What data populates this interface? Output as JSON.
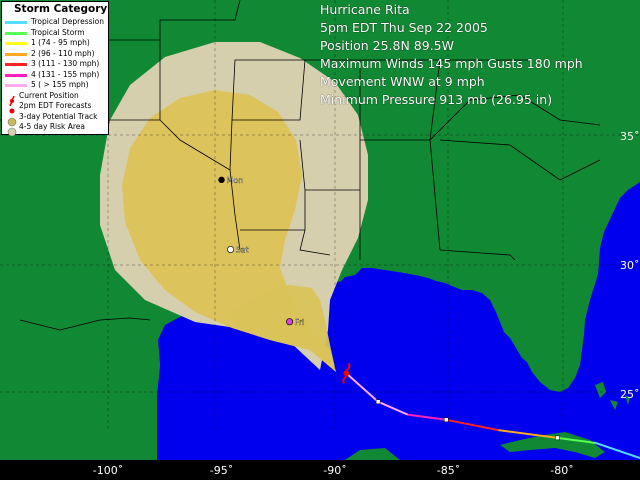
{
  "info": {
    "title": "Hurricane Rita",
    "time": "5pm EDT Thu Sep 22 2005",
    "position": "Position 25.8N 89.5W",
    "winds": "Maximum Winds 145 mph Gusts 180 mph",
    "movement": "Movement WNW at 9 mph",
    "pressure": "Minimum Pressure 913 mb (26.95 in)"
  },
  "legend": {
    "title": "Storm Category",
    "items": [
      {
        "label": "Tropical Depression",
        "color": "#55ddff",
        "kind": "line"
      },
      {
        "label": "Tropical Storm",
        "color": "#55ff55",
        "kind": "line"
      },
      {
        "label": "1 (74 - 95 mph)",
        "color": "#ffff22",
        "kind": "line"
      },
      {
        "label": "2 (96 - 110 mph)",
        "color": "#ffaa22",
        "kind": "line"
      },
      {
        "label": "3 (111 - 130 mph)",
        "color": "#ff2222",
        "kind": "line"
      },
      {
        "label": "4 (131 - 155 mph)",
        "color": "#ff22bb",
        "kind": "line"
      },
      {
        "label": "5 ( > 155 mph)",
        "color": "#ffaaee",
        "kind": "line"
      },
      {
        "label": "Current Position",
        "color": "#ee0000",
        "kind": "hurricane-icon"
      },
      {
        "label": "2pm EDT Forecasts",
        "color": "#ee0000",
        "kind": "dot"
      },
      {
        "label": "3-day Potential Track",
        "color": "#c8b858",
        "kind": "cone"
      },
      {
        "label": "4-5 day Risk Area",
        "color": "#d8d0b0",
        "kind": "risk"
      }
    ]
  },
  "forecast_points": [
    {
      "label": "Fri",
      "lon": -92.0,
      "lat": 27.8,
      "color": "#dd44dd"
    },
    {
      "label": "Sat",
      "lon": -94.6,
      "lat": 30.6,
      "color": "#ffffff"
    },
    {
      "label": "Mon",
      "lon": -95.0,
      "lat": 33.3,
      "color": "#000000"
    }
  ],
  "current_position": {
    "lon": -89.5,
    "lat": 25.8
  },
  "past_track": [
    {
      "lon": -78.5,
      "lat": 23.1
    },
    {
      "lon": -80.2,
      "lat": 23.3
    },
    {
      "lon": -82.8,
      "lat": 23.6
    },
    {
      "lon": -85.1,
      "lat": 24.0
    },
    {
      "lon": -86.8,
      "lat": 24.2
    },
    {
      "lon": -88.1,
      "lat": 24.7
    },
    {
      "lon": -89.5,
      "lat": 25.8
    }
  ],
  "axes": {
    "lon_labels": [
      "-100˚",
      "-95˚",
      "-90˚",
      "-85˚",
      "-80˚"
    ],
    "lat_labels": [
      "35˚",
      "30˚",
      "25˚"
    ],
    "lon_values": [
      -100,
      -95,
      -90,
      -85,
      -80
    ],
    "lat_values": [
      35,
      30,
      25
    ]
  },
  "colors": {
    "land": "#118833",
    "water": "#0000ee",
    "cone": "#ddc35b",
    "risk": "#d6cfae",
    "borders": "#000000"
  }
}
